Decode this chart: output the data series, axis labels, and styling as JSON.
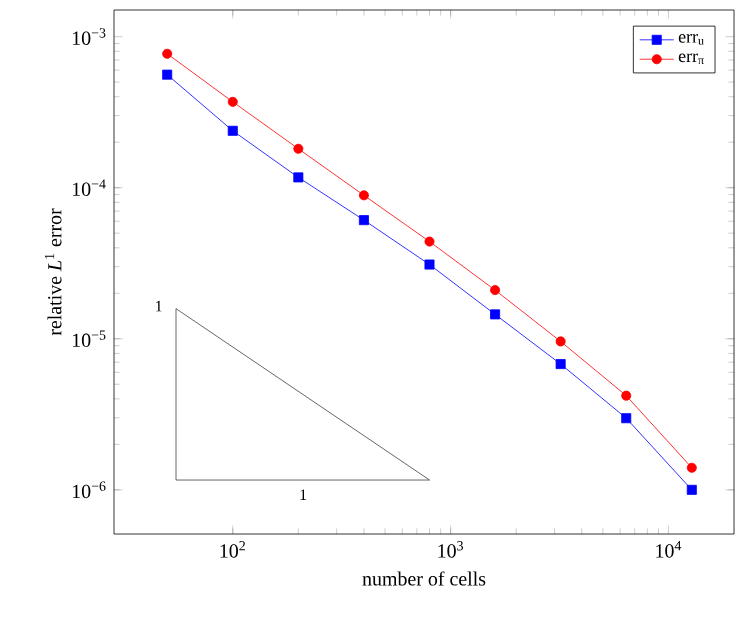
{
  "chart_data": {
    "type": "line",
    "xlabel": "number of cells",
    "ylabel": "relative *L*$^{1}$ error",
    "log": "xy",
    "xlim": [
      28.5,
      20000
    ],
    "ylim": [
      5.1e-07,
      0.0015
    ],
    "xticks": [
      {
        "value": 100,
        "label": "10$^{2}$"
      },
      {
        "value": 1000,
        "label": "10$^{3}$"
      },
      {
        "value": 10000,
        "label": "10$^{4}$"
      }
    ],
    "yticks": [
      {
        "value": 1e-06,
        "label": "10$^{−6}$"
      },
      {
        "value": 1e-05,
        "label": "10$^{−5}$"
      },
      {
        "value": 0.0001,
        "label": "10$^{−4}$"
      },
      {
        "value": 0.001,
        "label": "10$^{−3}$"
      }
    ],
    "x": [
      50,
      100,
      200,
      400,
      800,
      1600,
      3200,
      6400,
      12800
    ],
    "series": [
      {
        "name": "err$_{u}$",
        "color": "#0000ff",
        "marker": "square",
        "values": [
          0.00056,
          0.000238,
          0.000117,
          6.1e-05,
          3.1e-05,
          1.45e-05,
          6.8e-06,
          2.98e-06,
          1e-06
        ]
      },
      {
        "name": "err$_{π}$",
        "color": "#ff0000",
        "marker": "circle",
        "values": [
          0.00077,
          0.00037,
          0.000181,
          8.9e-05,
          4.4e-05,
          2.1e-05,
          9.6e-06,
          4.2e-06,
          1.4e-06
        ]
      }
    ],
    "annotations": [
      "1",
      "1"
    ],
    "legend": "top right",
    "grid": false,
    "line_style": "solid"
  }
}
